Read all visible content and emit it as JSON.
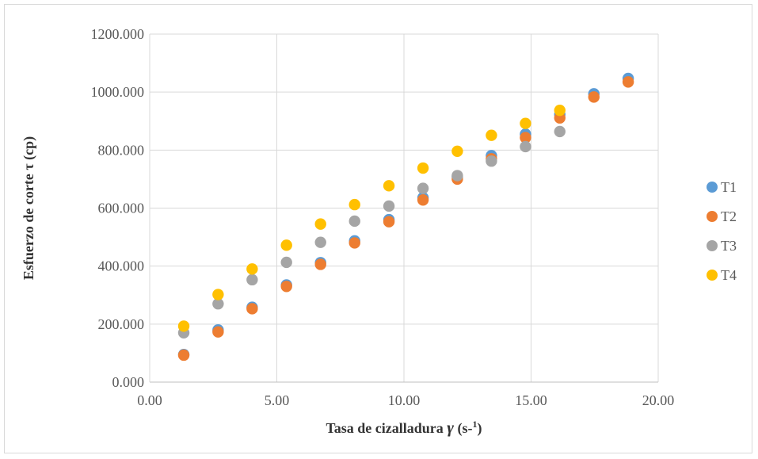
{
  "chart_data": {
    "type": "scatter",
    "xlabel": {
      "main": "Tasa de cizalladura ",
      "gamma": "γ",
      "unit": " (s-",
      "sup": "1",
      "close": ")"
    },
    "ylabel": "Esfuerzo de corte τ (cp)",
    "xlim": [
      0,
      20
    ],
    "ylim": [
      0,
      1200
    ],
    "x_ticks": [
      "0.00",
      "5.00",
      "10.00",
      "15.00",
      "20.00"
    ],
    "y_ticks": [
      "0.000",
      "200.000",
      "400.000",
      "600.000",
      "800.000",
      "1000.000",
      "1200.000"
    ],
    "grid": true,
    "legend_position": "right",
    "series": [
      {
        "name": "T1",
        "color": "#5b9bd5",
        "points": [
          [
            1.34,
            95
          ],
          [
            2.69,
            180
          ],
          [
            4.03,
            258
          ],
          [
            5.38,
            335
          ],
          [
            6.72,
            412
          ],
          [
            8.06,
            487
          ],
          [
            9.41,
            560
          ],
          [
            10.75,
            636
          ],
          [
            12.1,
            708
          ],
          [
            13.44,
            781
          ],
          [
            14.78,
            855
          ],
          [
            16.13,
            923
          ],
          [
            17.47,
            994
          ],
          [
            18.82,
            1047
          ]
        ]
      },
      {
        "name": "T2",
        "color": "#ed7d31",
        "points": [
          [
            1.34,
            93
          ],
          [
            2.69,
            173
          ],
          [
            4.03,
            253
          ],
          [
            5.38,
            330
          ],
          [
            6.72,
            406
          ],
          [
            8.06,
            480
          ],
          [
            9.41,
            553
          ],
          [
            10.75,
            628
          ],
          [
            12.1,
            700
          ],
          [
            13.44,
            770
          ],
          [
            14.78,
            843
          ],
          [
            16.13,
            911
          ],
          [
            17.47,
            983
          ],
          [
            18.82,
            1035
          ]
        ]
      },
      {
        "name": "T3",
        "color": "#a5a5a5",
        "points": [
          [
            1.34,
            170
          ],
          [
            2.69,
            270
          ],
          [
            4.03,
            353
          ],
          [
            5.38,
            413
          ],
          [
            6.72,
            482
          ],
          [
            8.06,
            555
          ],
          [
            9.41,
            607
          ],
          [
            10.75,
            668
          ],
          [
            12.1,
            712
          ],
          [
            13.44,
            762
          ],
          [
            14.78,
            812
          ],
          [
            16.13,
            864
          ]
        ]
      },
      {
        "name": "T4",
        "color": "#ffc000",
        "points": [
          [
            1.34,
            193
          ],
          [
            2.69,
            302
          ],
          [
            4.03,
            390
          ],
          [
            5.38,
            472
          ],
          [
            6.72,
            545
          ],
          [
            8.06,
            612
          ],
          [
            9.41,
            677
          ],
          [
            10.75,
            738
          ],
          [
            12.1,
            796
          ],
          [
            13.44,
            851
          ],
          [
            14.78,
            892
          ],
          [
            16.13,
            937
          ]
        ]
      }
    ]
  }
}
